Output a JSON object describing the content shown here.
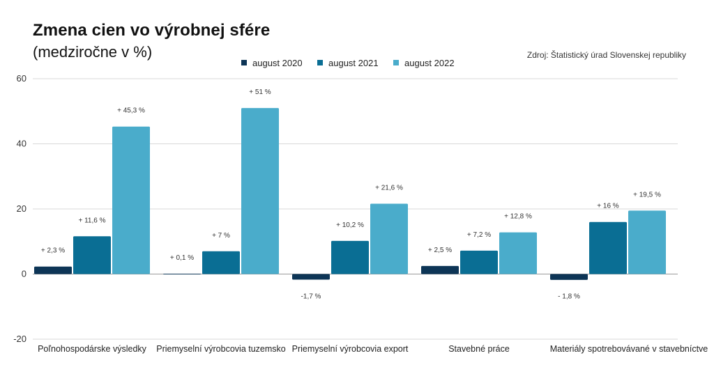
{
  "title": "Zmena cien vo výrobnej sfére",
  "subtitle": "(medziročne v %)",
  "source": "Zdroj: Štatistický úrad Slovenskej republiky",
  "chart_data": {
    "type": "bar",
    "categories": [
      "Poľnohospodárske výsledky",
      "Priemyselní výrobcovia tuzemsko",
      "Priemyselní výrobcovia export",
      "Stavebné práce",
      "Materiály spotrebovávané v stavebníctve"
    ],
    "series": [
      {
        "name": "august 2020",
        "color": "#0d3556",
        "values": [
          2.3,
          0.1,
          -1.7,
          2.5,
          -1.8
        ],
        "labels": [
          "+ 2,3 %",
          "+ 0,1 %",
          "-1,7 %",
          "+ 2,5  %",
          "- 1,8 %"
        ]
      },
      {
        "name": "august 2021",
        "color": "#0a6e94",
        "values": [
          11.6,
          7,
          10.2,
          7.2,
          16
        ],
        "labels": [
          "+ 11,6 %",
          "+ 7 %",
          "+ 10,2  %",
          "+ 7,2 %",
          "+ 16 %"
        ]
      },
      {
        "name": "august 2022",
        "color": "#4aaccb",
        "values": [
          45.3,
          51,
          21.6,
          12.8,
          19.5
        ],
        "labels": [
          "+ 45,3 %",
          "+ 51 %",
          "+ 21,6 %",
          "+ 12,8 %",
          "+ 19,5 %"
        ]
      }
    ],
    "ylim": [
      -20,
      60
    ],
    "yticks": [
      -20,
      0,
      20,
      40,
      60
    ],
    "grid": true,
    "legend": "top-center"
  }
}
